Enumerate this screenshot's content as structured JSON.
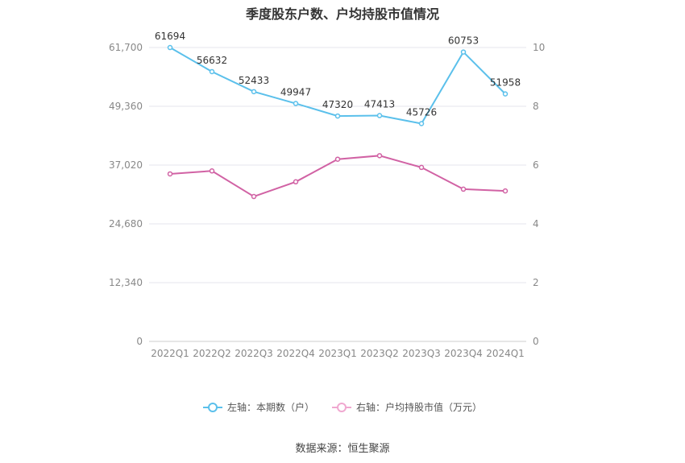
{
  "chart_data": {
    "type": "line",
    "title": "季度股东户数、户均持股市值情况",
    "categories": [
      "2022Q1",
      "2022Q2",
      "2022Q3",
      "2022Q4",
      "2023Q1",
      "2023Q2",
      "2023Q3",
      "2023Q4",
      "2024Q1"
    ],
    "left_axis": {
      "ylim": [
        0,
        61700
      ],
      "ticks": [
        "0",
        "12,340",
        "24,680",
        "37,020",
        "49,360",
        "61,700"
      ]
    },
    "right_axis": {
      "ylim": [
        0,
        10
      ],
      "ticks": [
        "0",
        "2",
        "4",
        "6",
        "8",
        "10"
      ]
    },
    "series": [
      {
        "name": "左轴：本期数（户）",
        "axis": "left",
        "color": "#5bc0eb",
        "values": [
          61694,
          56632,
          52433,
          49947,
          47320,
          47413,
          45726,
          60753,
          51958
        ],
        "labels": [
          "61694",
          "56632",
          "52433",
          "49947",
          "47320",
          "47413",
          "45726",
          "60753",
          "51958"
        ]
      },
      {
        "name": "右轴：户均持股市值（万元）",
        "axis": "right",
        "color": "#d162a4",
        "values": [
          5.7,
          5.8,
          4.93,
          5.43,
          6.2,
          6.32,
          5.92,
          5.18,
          5.12
        ]
      }
    ],
    "grid": true,
    "legend_position": "bottom"
  },
  "source": "数据来源：恒生聚源"
}
